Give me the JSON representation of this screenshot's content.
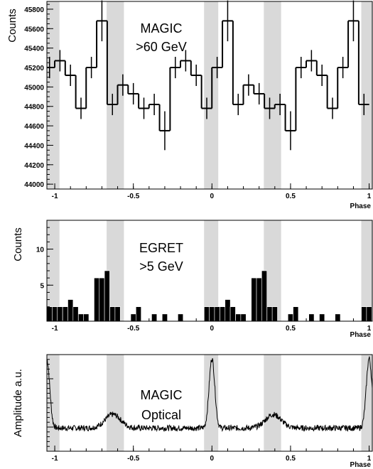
{
  "chart_data": [
    {
      "type": "line",
      "step": true,
      "ylabel": "Counts",
      "xlabel": "Phase",
      "annotation": [
        "MAGIC",
        ">60 GeV"
      ],
      "xlim": [
        -1.05,
        1.02
      ],
      "ylim": [
        43950,
        45880
      ],
      "yticks": [
        44000,
        44200,
        44400,
        44600,
        44800,
        45000,
        45200,
        45400,
        45600,
        45800
      ],
      "xticks": [
        -1,
        -0.5,
        0,
        0.5,
        1
      ],
      "xtick_labels": [
        "-1",
        "-0.5",
        "0",
        "0.5",
        "1"
      ],
      "shaded_x_ranges": [
        [
          -1.05,
          -0.97
        ],
        [
          -0.67,
          -0.56
        ],
        [
          -0.05,
          0.04
        ],
        [
          0.33,
          0.44
        ],
        [
          0.95,
          1.02
        ]
      ],
      "bin_width": 0.0667,
      "x": [
        -1.033,
        -0.967,
        -0.9,
        -0.833,
        -0.767,
        -0.7,
        -0.633,
        -0.567,
        -0.5,
        -0.433,
        -0.367,
        -0.3,
        -0.233,
        -0.167,
        -0.1,
        -0.033,
        0.033,
        0.1,
        0.167,
        0.233,
        0.3,
        0.367,
        0.433,
        0.5,
        0.567,
        0.633,
        0.7,
        0.767,
        0.833,
        0.9,
        0.967
      ],
      "values": [
        45200,
        45270,
        45120,
        44780,
        45200,
        45680,
        44820,
        45020,
        44930,
        44780,
        44820,
        44550,
        45200,
        45270,
        45120,
        44780,
        45200,
        45680,
        44820,
        45020,
        44930,
        44780,
        44820,
        44550,
        45200,
        45270,
        45120,
        44780,
        45200,
        45680,
        44820
      ],
      "errors": [
        110,
        110,
        110,
        110,
        110,
        210,
        110,
        110,
        110,
        110,
        110,
        200,
        110,
        110,
        110,
        110,
        110,
        210,
        110,
        110,
        110,
        110,
        110,
        200,
        110,
        110,
        110,
        110,
        110,
        210,
        110
      ]
    },
    {
      "type": "bar",
      "histogram": true,
      "ylabel": "Counts",
      "xlabel": "Phase",
      "annotation": [
        "EGRET",
        ">5 GeV"
      ],
      "xlim": [
        -1.05,
        1.02
      ],
      "ylim": [
        0,
        14
      ],
      "yticks": [
        5,
        10
      ],
      "xticks": [
        -1,
        -0.5,
        0,
        0.5,
        1
      ],
      "xtick_labels": [
        "-1",
        "-0.5",
        "0",
        "0.5",
        "1"
      ],
      "shaded_x_ranges": [
        [
          -1.05,
          -0.97
        ],
        [
          -0.67,
          -0.56
        ],
        [
          -0.05,
          0.04
        ],
        [
          0.33,
          0.44
        ],
        [
          0.95,
          1.02
        ]
      ],
      "bin_width": 0.0333,
      "x": [
        -1.033,
        -1.0,
        -0.967,
        -0.933,
        -0.9,
        -0.867,
        -0.833,
        -0.8,
        -0.767,
        -0.733,
        -0.7,
        -0.667,
        -0.633,
        -0.6,
        -0.567,
        -0.533,
        -0.5,
        -0.467,
        -0.433,
        -0.4,
        -0.367,
        -0.333,
        -0.3,
        -0.267,
        -0.233,
        -0.2,
        -0.167,
        -0.133,
        -0.1,
        -0.067,
        -0.033,
        0.0,
        0.033,
        0.067,
        0.1,
        0.133,
        0.167,
        0.2,
        0.233,
        0.267,
        0.3,
        0.333,
        0.367,
        0.4,
        0.433,
        0.467,
        0.5,
        0.533,
        0.567,
        0.6,
        0.633,
        0.667,
        0.7,
        0.733,
        0.767,
        0.8,
        0.833,
        0.867,
        0.9,
        0.933,
        0.967,
        1.0
      ],
      "values": [
        2,
        2,
        2,
        2,
        3,
        2,
        1,
        1,
        0,
        6,
        6,
        7,
        2,
        2,
        0,
        0,
        1,
        2,
        0,
        0,
        1,
        0,
        1,
        0,
        0,
        1,
        0,
        0,
        0,
        0,
        2,
        2,
        2,
        2,
        3,
        2,
        1,
        1,
        0,
        6,
        6,
        7,
        2,
        2,
        0,
        0,
        1,
        2,
        0,
        0,
        1,
        0,
        1,
        0,
        0,
        1,
        0,
        0,
        0,
        0,
        2,
        2
      ]
    },
    {
      "type": "line",
      "ylabel": "Amplitude a.u.",
      "xlabel": "Phase",
      "annotation": [
        "MAGIC",
        "Optical"
      ],
      "xlim": [
        -1.05,
        1.02
      ],
      "ylim": [
        0,
        1
      ],
      "xticks": [
        -1,
        -0.5,
        0,
        0.5,
        1
      ],
      "xtick_labels": [
        "-1",
        "-0.5",
        "0",
        "0.5",
        "1"
      ],
      "shaded_x_ranges": [
        [
          -1.05,
          -0.97
        ],
        [
          -0.67,
          -0.56
        ],
        [
          -0.05,
          0.04
        ],
        [
          0.33,
          0.44
        ],
        [
          0.95,
          1.02
        ]
      ],
      "peaks": [
        {
          "phase": -1.05,
          "amplitude": 0.95
        },
        {
          "phase": -0.63,
          "amplitude": 0.38
        },
        {
          "phase": 0.0,
          "amplitude": 0.96
        },
        {
          "phase": 0.39,
          "amplitude": 0.38
        },
        {
          "phase": 1.0,
          "amplitude": 0.96
        }
      ],
      "baseline": 0.24
    }
  ]
}
